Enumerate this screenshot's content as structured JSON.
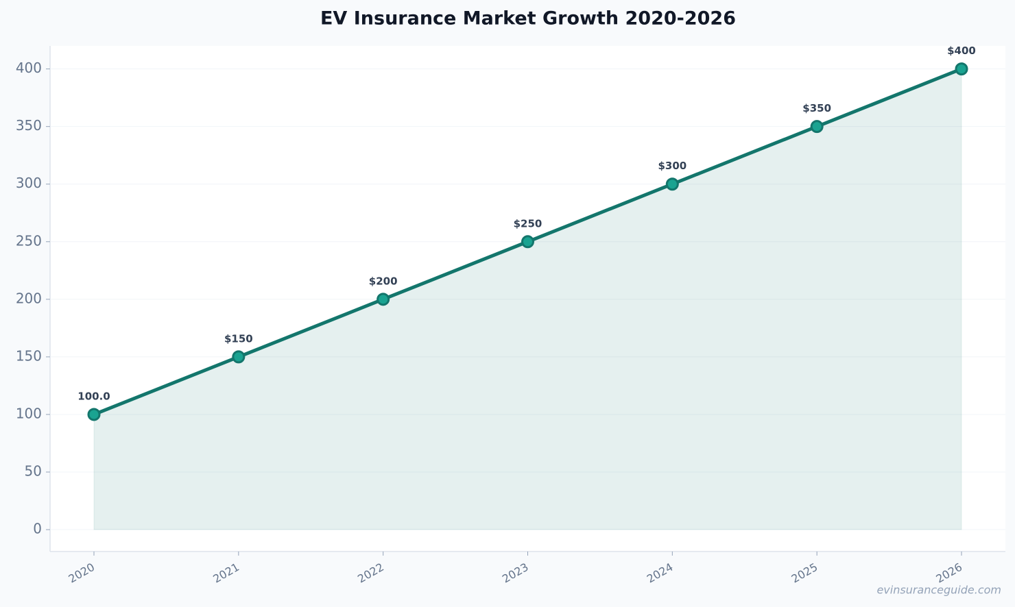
{
  "chart_data": {
    "type": "line",
    "title": "EV Insurance Market Growth 2020-2026",
    "categories": [
      "2020",
      "2021",
      "2022",
      "2023",
      "2024",
      "2025",
      "2026"
    ],
    "values": [
      100,
      150,
      200,
      250,
      300,
      350,
      400
    ],
    "value_labels": [
      "100.0",
      "$150",
      "$200",
      "$250",
      "$300",
      "$350",
      "$400"
    ],
    "color": "#13766c",
    "marker_color": "#1aa391",
    "area": true,
    "grid": true,
    "ylim": [
      -19,
      420
    ],
    "yticks": [
      0,
      50,
      100,
      150,
      200,
      250,
      300,
      350,
      400
    ],
    "watermark": "evinsuranceguide.com"
  }
}
